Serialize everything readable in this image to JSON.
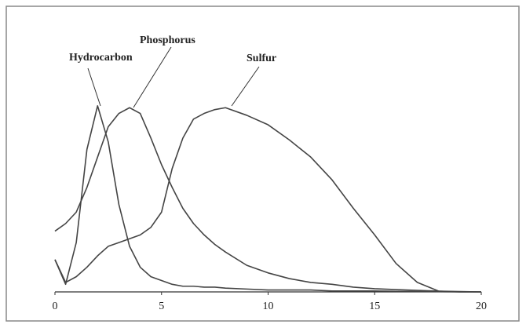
{
  "chart_data": {
    "type": "line",
    "x": [
      0,
      0.5,
      1,
      1.5,
      2,
      2.5,
      3,
      3.5,
      4,
      4.5,
      5,
      5.5,
      6,
      6.5,
      7,
      7.5,
      8,
      9,
      10,
      11,
      12,
      13,
      14,
      15,
      16,
      17,
      18,
      19,
      20
    ],
    "series": [
      {
        "name": "Hydrocarbon",
        "color": "#444444",
        "values": [
          17,
          4,
          26,
          75,
          98,
          79,
          46,
          24,
          13,
          8,
          6,
          4,
          3,
          3,
          2.5,
          2.5,
          2,
          1.5,
          1,
          1,
          1,
          0.5,
          0.5,
          0.5,
          0.3,
          0.2,
          0.1,
          0,
          0
        ]
      },
      {
        "name": "Phosphorus",
        "color": "#444444",
        "values": [
          32,
          36,
          42,
          55,
          71,
          87,
          94,
          97,
          94,
          81,
          67,
          55,
          44,
          36,
          30,
          25,
          21,
          14,
          10,
          7,
          5,
          4,
          2.5,
          1.7,
          1.2,
          0.8,
          0.4,
          0.2,
          0
        ]
      },
      {
        "name": "Sulfur",
        "color": "#444444",
        "values": [
          17,
          5,
          8,
          13,
          19,
          24,
          26,
          28,
          30,
          34,
          42,
          65,
          81,
          91,
          94,
          96,
          97,
          93,
          88,
          80,
          71,
          59,
          44,
          30,
          15,
          5,
          0.4,
          0,
          0
        ]
      }
    ],
    "xlim": [
      0,
      20
    ],
    "xticks": [
      0,
      5,
      10,
      15,
      20
    ],
    "ylim": [
      0,
      100
    ]
  }
}
